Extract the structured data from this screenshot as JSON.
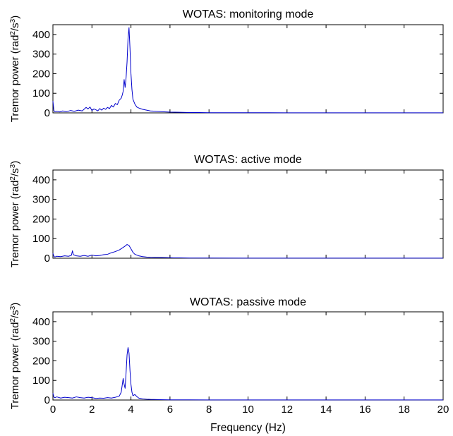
{
  "chart_data": [
    {
      "type": "line",
      "title": "WOTAS: monitoring mode",
      "ylabel": "Tremor power (rad²/s³)",
      "ylabel_base": "Tremor power (rad",
      "ylabel_sup1": "2",
      "ylabel_mid": "/s",
      "ylabel_sup2": "3",
      "ylabel_end": ")",
      "xlim": [
        0,
        20
      ],
      "ylim": [
        0,
        450
      ],
      "yticks": [
        0,
        100,
        200,
        300,
        400
      ],
      "xticks": [],
      "xlabel": "",
      "color": "#0000cc",
      "x": [
        0,
        0.05,
        0.1,
        0.2,
        0.35,
        0.5,
        0.7,
        0.9,
        1.1,
        1.3,
        1.5,
        1.7,
        1.8,
        1.9,
        2.0,
        2.1,
        2.2,
        2.3,
        2.4,
        2.5,
        2.6,
        2.7,
        2.8,
        2.9,
        3.0,
        3.1,
        3.2,
        3.3,
        3.4,
        3.5,
        3.55,
        3.6,
        3.65,
        3.7,
        3.75,
        3.8,
        3.85,
        3.9,
        3.95,
        4.0,
        4.05,
        4.1,
        4.2,
        4.3,
        4.4,
        4.6,
        4.8,
        5.0,
        5.3,
        5.6,
        6.0,
        6.5,
        7.0,
        7.5,
        8,
        9,
        10,
        12,
        14,
        16,
        18,
        20
      ],
      "y": [
        60,
        12,
        6,
        8,
        5,
        10,
        6,
        12,
        8,
        14,
        10,
        28,
        20,
        30,
        12,
        20,
        16,
        10,
        22,
        14,
        24,
        18,
        28,
        22,
        38,
        30,
        48,
        42,
        65,
        75,
        90,
        110,
        170,
        130,
        180,
        260,
        380,
        435,
        330,
        200,
        120,
        70,
        45,
        30,
        25,
        18,
        14,
        10,
        8,
        6,
        4,
        3,
        2,
        2,
        1,
        1,
        1,
        0.5,
        0.5,
        0.5,
        0.5,
        0.5
      ]
    },
    {
      "type": "line",
      "title": "WOTAS: active mode",
      "ylabel": "Tremor power (rad²/s³)",
      "ylabel_base": "Tremor power (rad",
      "ylabel_sup1": "2",
      "ylabel_mid": "/s",
      "ylabel_sup2": "3",
      "ylabel_end": ")",
      "xlim": [
        0,
        20
      ],
      "ylim": [
        0,
        450
      ],
      "yticks": [
        0,
        100,
        200,
        300,
        400
      ],
      "xticks": [],
      "xlabel": "",
      "color": "#0000cc",
      "x": [
        0,
        0.05,
        0.1,
        0.2,
        0.4,
        0.6,
        0.8,
        0.95,
        1.0,
        1.05,
        1.2,
        1.4,
        1.6,
        1.8,
        2.0,
        2.2,
        2.4,
        2.6,
        2.8,
        3.0,
        3.2,
        3.4,
        3.6,
        3.7,
        3.8,
        3.9,
        4.0,
        4.1,
        4.2,
        4.4,
        4.6,
        4.8,
        5.0,
        5.4,
        5.8,
        6.2,
        7,
        8,
        10,
        12,
        14,
        16,
        18,
        20
      ],
      "y": [
        25,
        10,
        6,
        10,
        8,
        12,
        10,
        15,
        38,
        18,
        12,
        10,
        14,
        10,
        16,
        12,
        14,
        18,
        20,
        28,
        34,
        42,
        55,
        62,
        70,
        65,
        48,
        30,
        20,
        12,
        8,
        6,
        5,
        4,
        3,
        2,
        1,
        1,
        0.5,
        0.5,
        0.5,
        0.5,
        0.5,
        0.5
      ]
    },
    {
      "type": "line",
      "title": "WOTAS: passive mode",
      "ylabel": "Tremor power (rad²/s³)",
      "ylabel_base": "Tremor power (rad",
      "ylabel_sup1": "2",
      "ylabel_mid": "/s",
      "ylabel_sup2": "3",
      "ylabel_end": ")",
      "xlim": [
        0,
        20
      ],
      "ylim": [
        0,
        450
      ],
      "yticks": [
        0,
        100,
        200,
        300,
        400
      ],
      "xticks": [
        0,
        2,
        4,
        6,
        8,
        10,
        12,
        14,
        16,
        18,
        20
      ],
      "xlabel": "Frequency (Hz)",
      "color": "#0000cc",
      "x": [
        0,
        0.05,
        0.1,
        0.2,
        0.4,
        0.6,
        0.8,
        1.0,
        1.2,
        1.4,
        1.6,
        1.8,
        2.0,
        2.2,
        2.4,
        2.6,
        2.8,
        3.0,
        3.2,
        3.4,
        3.5,
        3.6,
        3.65,
        3.7,
        3.75,
        3.8,
        3.85,
        3.9,
        3.95,
        4.0,
        4.05,
        4.1,
        4.2,
        4.3,
        4.4,
        4.6,
        4.8,
        5.0,
        5.5,
        6,
        7,
        8,
        10,
        12,
        14,
        16,
        18,
        20
      ],
      "y": [
        35,
        15,
        12,
        16,
        10,
        14,
        12,
        10,
        16,
        12,
        10,
        14,
        12,
        8,
        10,
        9,
        12,
        10,
        14,
        20,
        40,
        110,
        80,
        60,
        140,
        230,
        268,
        240,
        150,
        80,
        40,
        22,
        28,
        18,
        10,
        6,
        4,
        3,
        2,
        1,
        1,
        0.5,
        0.5,
        0.5,
        0.5,
        0.5,
        0.5,
        0.5
      ]
    }
  ]
}
